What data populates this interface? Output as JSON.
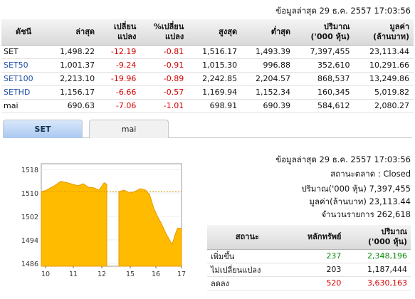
{
  "top_timestamp": "ข้อมูลล่าสุด 29 ธ.ค. 2557 17:03:56",
  "index_table": {
    "headers": {
      "index": "ดัชนี",
      "last": "ล่าสุด",
      "change_1": "เปลี่ยน",
      "change_2": "แปลง",
      "pct_1": "%เปลี่ยน",
      "pct_2": "แปลง",
      "high": "สูงสุด",
      "low": "ต่ำสุด",
      "volume_1": "ปริมาณ",
      "volume_2": "('000 หุ้น)",
      "value_1": "มูลค่า",
      "value_2": "(ล้านบาท)"
    },
    "rows": [
      {
        "name": "SET",
        "last": "1,498.22",
        "change": "-12.19",
        "pct": "-0.81",
        "high": "1,516.17",
        "low": "1,493.39",
        "volume": "7,397,455",
        "value": "23,113.44"
      },
      {
        "name": "SET50",
        "last": "1,001.37",
        "change": "-9.24",
        "pct": "-0.91",
        "high": "1,015.30",
        "low": "996.88",
        "volume": "352,610",
        "value": "10,291.66"
      },
      {
        "name": "SET100",
        "last": "2,213.10",
        "change": "-19.96",
        "pct": "-0.89",
        "high": "2,242.85",
        "low": "2,204.57",
        "volume": "868,537",
        "value": "13,249.86"
      },
      {
        "name": "SETHD",
        "last": "1,156.17",
        "change": "-6.66",
        "pct": "-0.57",
        "high": "1,169.94",
        "low": "1,152.34",
        "volume": "160,345",
        "value": "5,019.82"
      },
      {
        "name": "mai",
        "last": "690.63",
        "change": "-7.06",
        "pct": "-1.01",
        "high": "698.91",
        "low": "690.39",
        "volume": "584,612",
        "value": "2,080.27"
      }
    ]
  },
  "tabs": [
    {
      "label": "SET"
    },
    {
      "label": "mai"
    }
  ],
  "chart_data": {
    "type": "area",
    "ylim": [
      1485,
      1520
    ],
    "y_ticks": [
      "1518",
      "1510",
      "1502",
      "1494",
      "1486"
    ],
    "x_ticks": [
      "10",
      "11",
      "12",
      "15",
      "16",
      "17"
    ],
    "reference_level": 1510.41,
    "colors": {
      "fill": "#ffbb00",
      "line": "#e59900",
      "reference": "#dd9900"
    },
    "session1": [
      [
        10.0,
        1510.5
      ],
      [
        10.15,
        1510.8
      ],
      [
        10.3,
        1511.5
      ],
      [
        10.5,
        1512.5
      ],
      [
        10.75,
        1514.0
      ],
      [
        11.0,
        1513.5
      ],
      [
        11.2,
        1513.0
      ],
      [
        11.4,
        1512.5
      ],
      [
        11.6,
        1513.2
      ],
      [
        11.8,
        1512.0
      ],
      [
        12.0,
        1511.8
      ],
      [
        12.2,
        1511.0
      ],
      [
        12.4,
        1513.5
      ],
      [
        12.5,
        1513.0
      ]
    ],
    "session2": [
      [
        14.5,
        1510.5
      ],
      [
        14.7,
        1511.0
      ],
      [
        14.9,
        1510.0
      ],
      [
        15.1,
        1510.5
      ],
      [
        15.3,
        1511.5
      ],
      [
        15.5,
        1511.0
      ],
      [
        15.65,
        1509.5
      ],
      [
        15.8,
        1505.0
      ],
      [
        15.95,
        1502.0
      ],
      [
        16.1,
        1499.5
      ],
      [
        16.25,
        1496.5
      ],
      [
        16.4,
        1494.0
      ],
      [
        16.5,
        1492.5
      ],
      [
        16.6,
        1495.5
      ],
      [
        16.7,
        1498.0
      ],
      [
        16.85,
        1498.0
      ]
    ]
  },
  "info": {
    "timestamp": "ข้อมูลล่าสุด 29 ธ.ค. 2557 17:03:56",
    "market_status": "สถานะตลาด : Closed",
    "volume": "ปริมาณ('000 หุ้น) 7,397,455",
    "value": "มูลค่า(ล้านบาท) 23,113.44",
    "transactions": "จำนวนรายการ 262,618"
  },
  "breadth_table": {
    "headers": {
      "status": "สถานะ",
      "securities": "หลักทรัพย์",
      "volume_1": "ปริมาณ",
      "volume_2": "('000 หุ้น)"
    },
    "rows": [
      {
        "label": "เพิ่มขึ้น",
        "count": "237",
        "volume": "2,348,196",
        "color": "#0a8a0a"
      },
      {
        "label": "ไม่เปลี่ยนแปลง",
        "count": "203",
        "volume": "1,187,444",
        "color": "#111111"
      },
      {
        "label": "ลดลง",
        "count": "520",
        "volume": "3,630,163",
        "color": "#d60000"
      }
    ]
  }
}
